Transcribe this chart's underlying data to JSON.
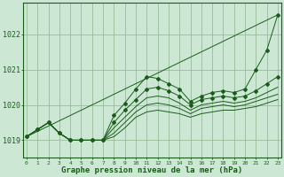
{
  "bg_color": "#cce8d4",
  "grid_color": "#99bb99",
  "line_color": "#1a5c1a",
  "title": "Graphe pression niveau de la mer (hPa)",
  "xlabel_ticks": [
    0,
    1,
    2,
    3,
    4,
    5,
    6,
    7,
    8,
    9,
    10,
    11,
    12,
    13,
    14,
    15,
    16,
    17,
    18,
    19,
    20,
    21,
    22,
    23
  ],
  "ylim": [
    1018.5,
    1022.9
  ],
  "yticks": [
    1019,
    1020,
    1021,
    1022
  ],
  "s1": [
    1019.1,
    1019.3,
    1019.5,
    1019.2,
    1019.0,
    1019.0,
    1019.0,
    1019.0,
    1019.1,
    1019.35,
    1019.65,
    1019.8,
    1019.85,
    1019.8,
    1019.75,
    1019.65,
    1019.75,
    1019.8,
    1019.85,
    1019.85,
    1019.9,
    1019.95,
    1020.05,
    1020.15
  ],
  "s2": [
    1019.1,
    1019.3,
    1019.5,
    1019.2,
    1019.0,
    1019.0,
    1019.0,
    1019.0,
    1019.2,
    1019.5,
    1019.8,
    1020.0,
    1020.05,
    1020.0,
    1019.9,
    1019.75,
    1019.9,
    1019.95,
    1020.0,
    1019.95,
    1020.0,
    1020.1,
    1020.2,
    1020.3
  ],
  "s3": [
    1019.1,
    1019.3,
    1019.5,
    1019.2,
    1019.0,
    1019.0,
    1019.0,
    1019.0,
    1019.35,
    1019.65,
    1019.95,
    1020.2,
    1020.25,
    1020.2,
    1020.05,
    1019.85,
    1020.0,
    1020.05,
    1020.1,
    1020.05,
    1020.1,
    1020.2,
    1020.35,
    1020.5
  ],
  "s4": [
    1019.1,
    1019.3,
    1019.5,
    1019.2,
    1019.0,
    1019.0,
    1019.0,
    1019.0,
    1019.5,
    1019.85,
    1020.15,
    1020.45,
    1020.5,
    1020.4,
    1020.25,
    1020.0,
    1020.15,
    1020.2,
    1020.25,
    1020.2,
    1020.25,
    1020.4,
    1020.6,
    1020.8
  ],
  "s5_top": [
    1019.1,
    1019.3,
    1019.5,
    1019.2,
    1019.0,
    1019.0,
    1019.0,
    1019.0,
    1019.7,
    1020.05,
    1020.45,
    1020.8,
    1020.75,
    1020.6,
    1020.45,
    1020.1,
    1020.25,
    1020.35,
    1020.4,
    1020.35,
    1020.45,
    1021.0,
    1021.55,
    1022.55
  ],
  "s6_straight": [
    1019.1,
    1019.25,
    1019.4,
    1019.55,
    1019.7,
    1019.85,
    1020.0,
    1020.15,
    1020.3,
    1020.45,
    1020.6,
    1020.75,
    1020.9,
    1021.05,
    1021.2,
    1021.35,
    1021.5,
    1021.65,
    1021.8,
    1021.95,
    1022.1,
    1022.25,
    1022.4,
    1022.55
  ]
}
